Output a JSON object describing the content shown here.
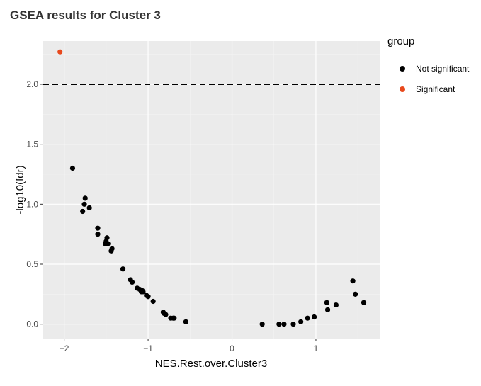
{
  "chart_data": {
    "type": "scatter",
    "title": "GSEA results for Cluster 3",
    "xlabel": "NES.Rest.over.Cluster3",
    "ylabel": "-log10(fdr)",
    "xlim": [
      -2.25,
      1.76
    ],
    "ylim": [
      -0.12,
      2.36
    ],
    "x_ticks": [
      -2,
      -1,
      0,
      1
    ],
    "x_tick_labels": [
      "−2",
      "−1",
      "0",
      "1"
    ],
    "y_ticks": [
      0,
      0.5,
      1,
      1.5,
      2
    ],
    "y_tick_labels": [
      "0.0",
      "0.5",
      "1.0",
      "1.5",
      "2.0"
    ],
    "grid": true,
    "threshold_line": {
      "y": 2.0,
      "style": "dashed"
    },
    "legend": {
      "title": "group",
      "position": "right",
      "items": [
        {
          "label": "Not significant",
          "color": "#000000"
        },
        {
          "label": "Significant",
          "color": "#e8491d"
        }
      ]
    },
    "series": [
      {
        "name": "Not significant",
        "color": "#000000",
        "points": [
          [
            -1.9,
            1.3
          ],
          [
            -1.75,
            1.05
          ],
          [
            -1.76,
            1.0
          ],
          [
            -1.7,
            0.97
          ],
          [
            -1.78,
            0.94
          ],
          [
            -1.6,
            0.8
          ],
          [
            -1.6,
            0.75
          ],
          [
            -1.49,
            0.72
          ],
          [
            -1.5,
            0.69
          ],
          [
            -1.51,
            0.67
          ],
          [
            -1.48,
            0.67
          ],
          [
            -1.43,
            0.63
          ],
          [
            -1.44,
            0.61
          ],
          [
            -1.3,
            0.46
          ],
          [
            -1.21,
            0.37
          ],
          [
            -1.19,
            0.35
          ],
          [
            -1.13,
            0.3
          ],
          [
            -1.1,
            0.29
          ],
          [
            -1.07,
            0.28
          ],
          [
            -1.08,
            0.27
          ],
          [
            -1.06,
            0.27
          ],
          [
            -1.02,
            0.24
          ],
          [
            -1.0,
            0.23
          ],
          [
            -0.94,
            0.19
          ],
          [
            -0.82,
            0.1
          ],
          [
            -0.81,
            0.09
          ],
          [
            -0.79,
            0.08
          ],
          [
            -0.73,
            0.05
          ],
          [
            -0.7,
            0.05
          ],
          [
            -0.69,
            0.05
          ],
          [
            -0.55,
            0.02
          ],
          [
            0.36,
            0.0
          ],
          [
            0.56,
            0.0
          ],
          [
            0.62,
            0.0
          ],
          [
            0.73,
            0.0
          ],
          [
            0.82,
            0.02
          ],
          [
            0.9,
            0.05
          ],
          [
            0.98,
            0.06
          ],
          [
            1.13,
            0.18
          ],
          [
            1.14,
            0.12
          ],
          [
            1.24,
            0.16
          ],
          [
            1.44,
            0.36
          ],
          [
            1.47,
            0.25
          ],
          [
            1.57,
            0.18
          ]
        ]
      },
      {
        "name": "Significant",
        "color": "#e8491d",
        "points": [
          [
            -2.05,
            2.27
          ]
        ]
      }
    ]
  }
}
